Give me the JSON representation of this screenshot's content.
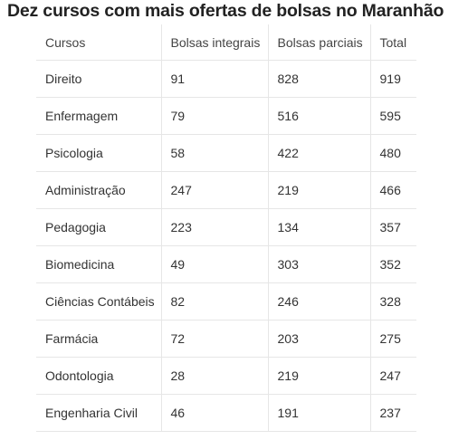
{
  "title": "Dez cursos com mais ofertas de bolsas no Maranhão",
  "table": {
    "headers": [
      "Cursos",
      "Bolsas integrais",
      "Bolsas parciais",
      "Total"
    ],
    "rows": [
      [
        "Direito",
        "91",
        "828",
        "919"
      ],
      [
        "Enfermagem",
        "79",
        "516",
        "595"
      ],
      [
        "Psicologia",
        "58",
        "422",
        "480"
      ],
      [
        "Administração",
        "247",
        "219",
        "466"
      ],
      [
        "Pedagogia",
        "223",
        "134",
        "357"
      ],
      [
        "Biomedicina",
        "49",
        "303",
        "352"
      ],
      [
        "Ciências Contábeis",
        "82",
        "246",
        "328"
      ],
      [
        "Farmácia",
        "72",
        "203",
        "275"
      ],
      [
        "Odontologia",
        "28",
        "219",
        "247"
      ],
      [
        "Engenharia Civil",
        "46",
        "191",
        "237"
      ]
    ]
  }
}
